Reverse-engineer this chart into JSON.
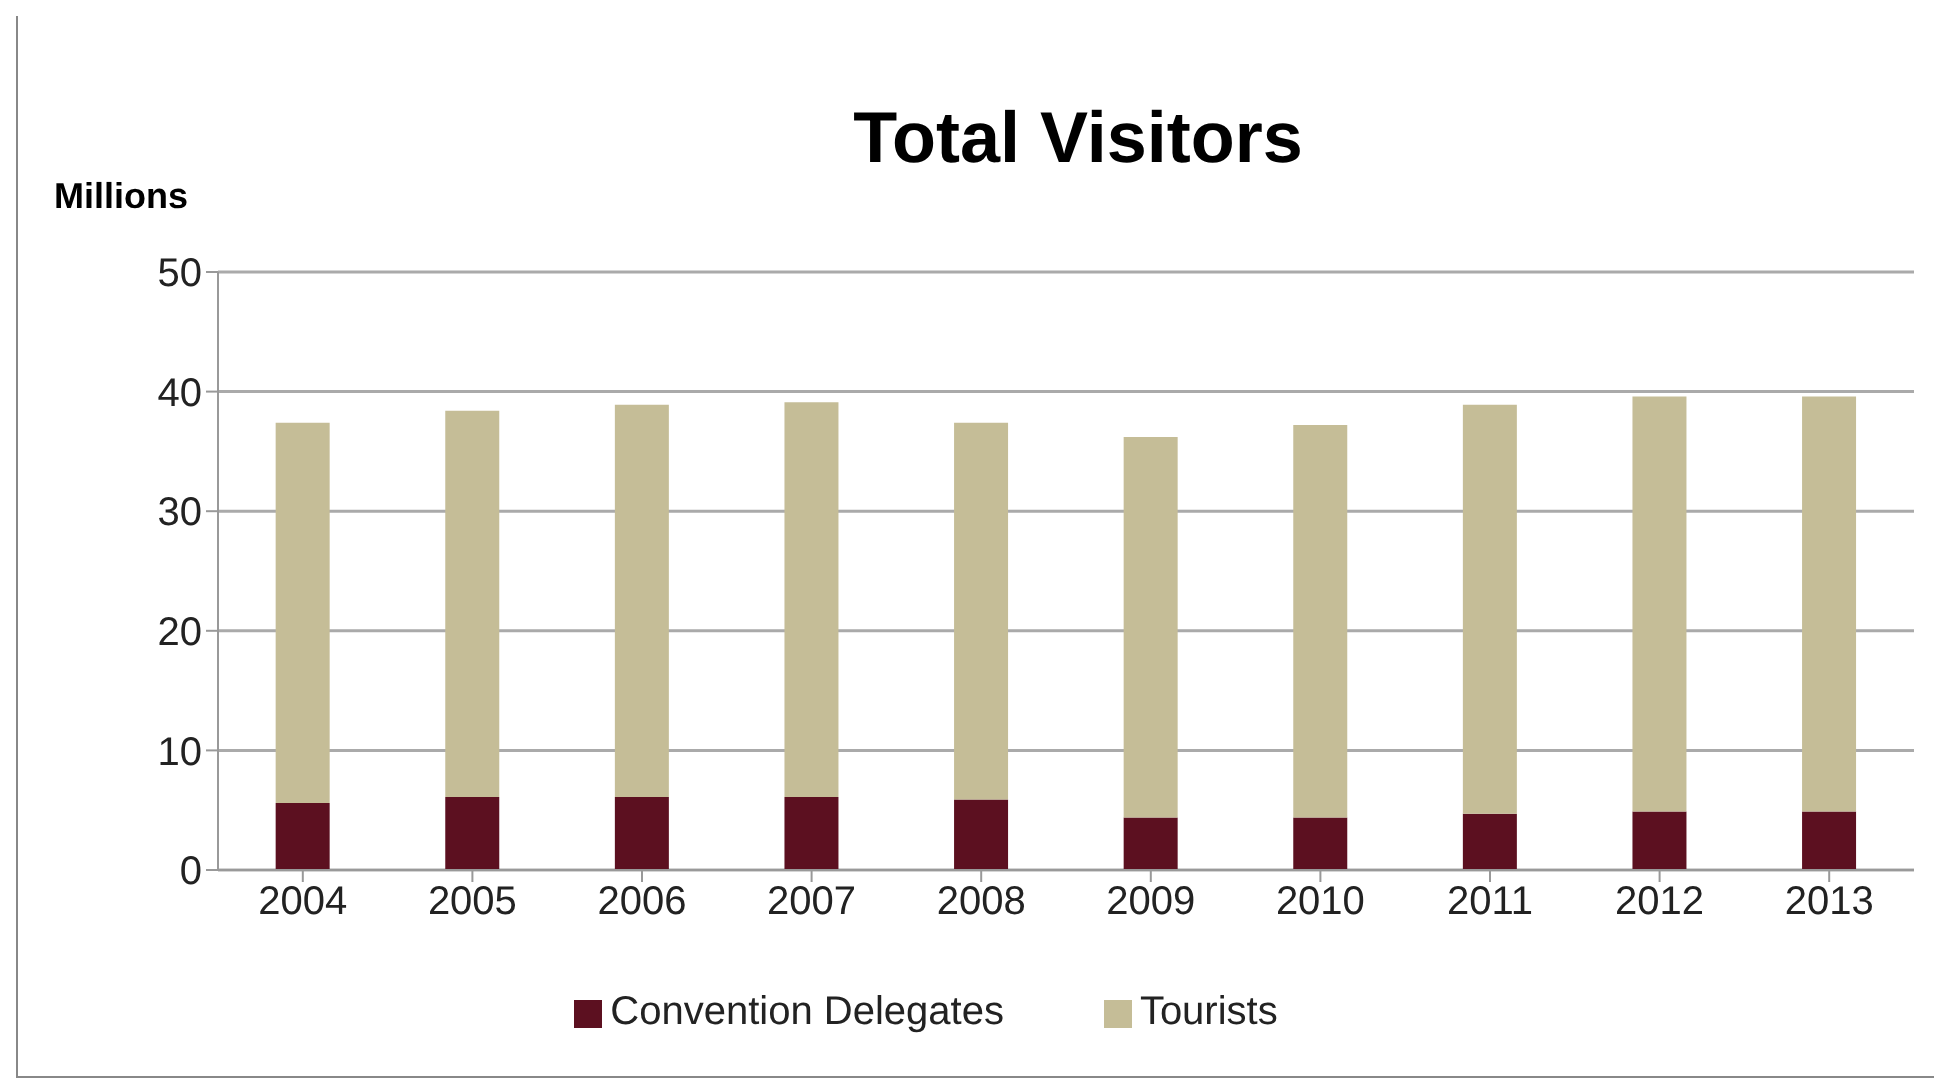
{
  "chart_data": {
    "type": "bar",
    "title": "Total Visitors",
    "ylabel": "Millions",
    "categories": [
      "2004",
      "2005",
      "2006",
      "2007",
      "2008",
      "2009",
      "2010",
      "2011",
      "2012",
      "2013"
    ],
    "stacked": true,
    "series": [
      {
        "name": "Convention Delegates",
        "color": "#5c1020",
        "values": [
          5.6,
          6.1,
          6.1,
          6.1,
          5.9,
          4.4,
          4.4,
          4.7,
          4.9,
          4.9
        ]
      },
      {
        "name": "Tourists",
        "color": "#c5bd97",
        "values": [
          31.8,
          32.3,
          32.8,
          33.0,
          31.5,
          31.8,
          32.8,
          34.2,
          34.7,
          34.7
        ]
      }
    ],
    "ylim": [
      0,
      50
    ],
    "yticks": [
      0,
      10,
      20,
      30,
      40,
      50
    ],
    "grid": "y",
    "legend": "bottom"
  }
}
